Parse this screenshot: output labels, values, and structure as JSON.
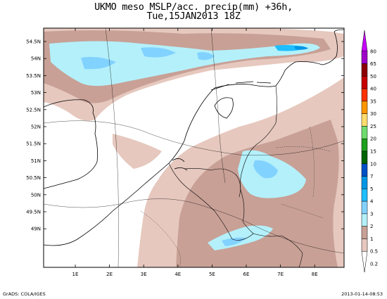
{
  "title": {
    "line1": "UKMO meso MSLP/acc. precip(mm) +36h,",
    "line2": "Tue,15JAN2013 18Z"
  },
  "map": {
    "lat_labels": [
      "54.5N",
      "54N",
      "53.5N",
      "53N",
      "52.5N",
      "52N",
      "51.5N",
      "51N",
      "50.5N",
      "50N",
      "49.5N",
      "49N"
    ],
    "lon_labels": [
      "1E",
      "2E",
      "3E",
      "4E",
      "5E",
      "6E",
      "7E",
      "8E"
    ]
  },
  "colorbar": {
    "levels": [
      {
        "label": "80",
        "color": "#c800ff"
      },
      {
        "label": "65",
        "color": "#a000c8"
      },
      {
        "label": "50",
        "color": "#8c0000"
      },
      {
        "label": "40",
        "color": "#c80000"
      },
      {
        "label": "35",
        "color": "#ff3200"
      },
      {
        "label": "30",
        "color": "#ff9600"
      },
      {
        "label": "25",
        "color": "#ffdc6e"
      },
      {
        "label": "20",
        "color": "#6edc6e"
      },
      {
        "label": "15",
        "color": "#1ea01e"
      },
      {
        "label": "10",
        "color": "#006400"
      },
      {
        "label": "7",
        "color": "#0050c8"
      },
      {
        "label": "5",
        "color": "#0096e6"
      },
      {
        "label": "4",
        "color": "#1ebeff"
      },
      {
        "label": "3",
        "color": "#82d2ff"
      },
      {
        "label": "2",
        "color": "#b4f0fa"
      },
      {
        "label": "1",
        "color": "#c8a096"
      },
      {
        "label": "0.5",
        "color": "#e6c8be"
      },
      {
        "label": "0.2",
        "color": "#ffffff"
      }
    ]
  },
  "footer": {
    "left": "GrADS: COLA/IGES",
    "right": "2013-01-14-08:53"
  }
}
